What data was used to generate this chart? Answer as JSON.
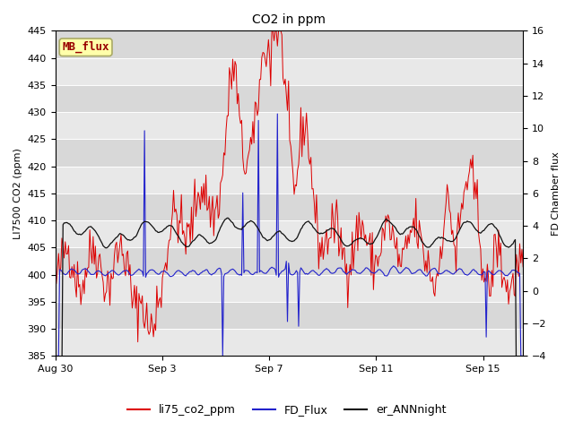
{
  "title": "CO2 in ppm",
  "ylabel_left": "LI7500 CO2 (ppm)",
  "ylabel_right": "FD Chamber flux",
  "ylim_left": [
    385,
    445
  ],
  "ylim_right": [
    -4,
    16
  ],
  "yticks_left": [
    385,
    390,
    395,
    400,
    405,
    410,
    415,
    420,
    425,
    430,
    435,
    440,
    445
  ],
  "yticks_right": [
    -4,
    -2,
    0,
    2,
    4,
    6,
    8,
    10,
    12,
    14,
    16
  ],
  "xtick_labels": [
    "Aug 30",
    "Sep 3",
    "Sep 7",
    "Sep 11",
    "Sep 15"
  ],
  "xtick_positions": [
    0,
    4,
    8,
    12,
    16
  ],
  "xlim": [
    0,
    17.5
  ],
  "legend_labels": [
    "li75_co2_ppm",
    "FD_Flux",
    "er_ANNnight"
  ],
  "colors": {
    "red": "#dd0000",
    "blue": "#2222cc",
    "black": "#111111",
    "bg_light": "#e8e8e8",
    "bg_dark": "#d8d8d8",
    "mb_flux_bg": "#ffffaa",
    "mb_flux_text": "#990000",
    "mb_flux_border": "#aaaa66"
  },
  "annotation_text": "MB_flux",
  "n_days": 17.5,
  "seed": 123
}
